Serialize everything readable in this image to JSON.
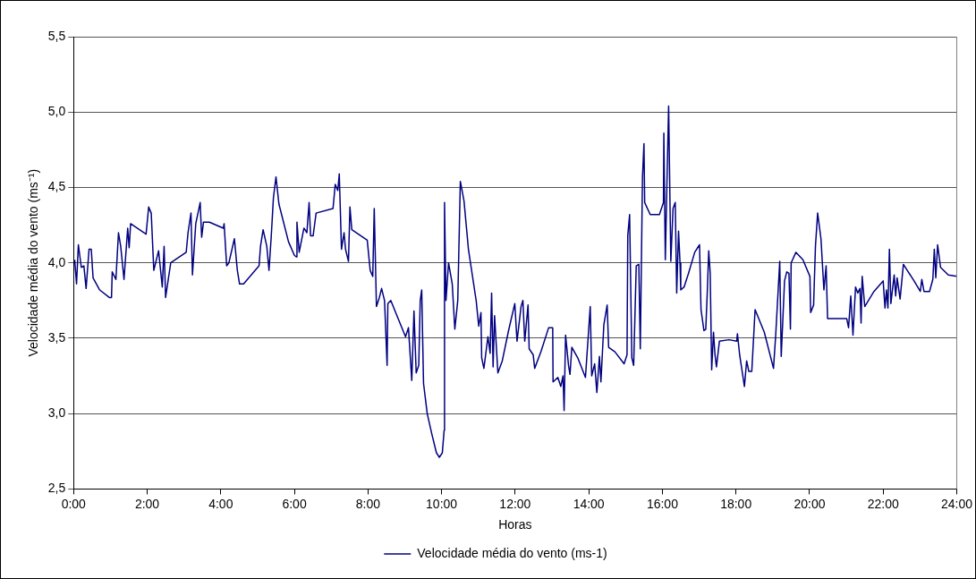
{
  "chart_data": {
    "type": "line",
    "xlabel": "Horas",
    "ylabel": "Velocidade média do vento (ms⁻¹)",
    "grid": "y",
    "legend": "bottom",
    "marker": "none",
    "xlim": [
      0,
      24
    ],
    "xticks": [
      {
        "value": 0,
        "label": "0:00"
      },
      {
        "value": 2,
        "label": "2:00"
      },
      {
        "value": 4,
        "label": "4:00"
      },
      {
        "value": 6,
        "label": "6:00"
      },
      {
        "value": 8,
        "label": "8:00"
      },
      {
        "value": 10,
        "label": "10:00"
      },
      {
        "value": 12,
        "label": "12:00"
      },
      {
        "value": 14,
        "label": "14:00"
      },
      {
        "value": 16,
        "label": "16:00"
      },
      {
        "value": 18,
        "label": "18:00"
      },
      {
        "value": 20,
        "label": "20:00"
      },
      {
        "value": 22,
        "label": "22:00"
      },
      {
        "value": 24,
        "label": "24:00"
      }
    ],
    "ylim": [
      2.5,
      5.5
    ],
    "yticks": [
      {
        "value": 2.5,
        "label": "2,5"
      },
      {
        "value": 3,
        "label": "3,0"
      },
      {
        "value": 3.5,
        "label": "3,5"
      },
      {
        "value": 4,
        "label": "4,0"
      },
      {
        "value": 4.5,
        "label": "4,5"
      },
      {
        "value": 5,
        "label": "5,0"
      },
      {
        "value": 5.5,
        "label": "5,5"
      }
    ],
    "series": [
      {
        "name": "Velocidade média do vento (ms-1)",
        "color": "#000080",
        "x": [
          0.03,
          0.08,
          0.13,
          0.21,
          0.28,
          0.34,
          0.42,
          0.48,
          0.53,
          0.71,
          0.97,
          1.03,
          1.05,
          1.15,
          1.22,
          1.28,
          1.37,
          1.47,
          1.51,
          1.55,
          1.97,
          2.04,
          2.11,
          2.18,
          2.31,
          2.41,
          2.46,
          2.5,
          2.64,
          3.06,
          3.11,
          3.19,
          3.23,
          3.32,
          3.44,
          3.48,
          3.53,
          3.69,
          4.07,
          4.09,
          4.16,
          4.22,
          4.37,
          4.45,
          4.51,
          4.62,
          5.04,
          5.08,
          5.15,
          5.25,
          5.31,
          5.37,
          5.43,
          5.5,
          5.58,
          5.84,
          6.0,
          6.05,
          6.07,
          6.13,
          6.26,
          6.34,
          6.4,
          6.44,
          6.51,
          6.59,
          7.05,
          7.11,
          7.18,
          7.22,
          7.28,
          7.35,
          7.39,
          7.47,
          7.51,
          7.56,
          7.98,
          8.06,
          8.13,
          8.17,
          8.23,
          8.31,
          8.37,
          8.45,
          8.52,
          8.54,
          8.62,
          8.77,
          9.02,
          9.1,
          9.19,
          9.25,
          9.31,
          9.38,
          9.42,
          9.46,
          9.51,
          9.61,
          9.73,
          9.86,
          9.94,
          10.02,
          10.07,
          10.08,
          10.12,
          10.19,
          10.29,
          10.36,
          10.44,
          10.51,
          10.61,
          10.73,
          10.94,
          11.01,
          11.07,
          11.09,
          11.15,
          11.26,
          11.32,
          11.36,
          11.4,
          11.44,
          11.53,
          11.65,
          11.82,
          11.99,
          12.05,
          12.16,
          12.21,
          12.26,
          12.35,
          12.38,
          12.49,
          12.53,
          12.7,
          12.91,
          13.02,
          13.03,
          13.16,
          13.24,
          13.3,
          13.33,
          13.37,
          13.45,
          13.49,
          13.54,
          13.7,
          13.91,
          14.04,
          14.08,
          14.16,
          14.22,
          14.29,
          14.33,
          14.41,
          14.5,
          14.54,
          14.71,
          14.96,
          15.04,
          15.06,
          15.11,
          15.17,
          15.22,
          15.29,
          15.36,
          15.4,
          15.46,
          15.5,
          15.52,
          15.67,
          15.92,
          16.03,
          16.04,
          16.08,
          16.17,
          16.23,
          16.29,
          16.35,
          16.39,
          16.44,
          16.48,
          16.5,
          16.59,
          16.71,
          16.88,
          17.01,
          17.05,
          17.13,
          17.18,
          17.22,
          17.26,
          17.3,
          17.34,
          17.39,
          17.43,
          17.47,
          17.55,
          17.81,
          18.02,
          18.04,
          18.1,
          18.23,
          18.29,
          18.35,
          18.43,
          18.52,
          18.77,
          19.02,
          19.08,
          19.19,
          19.23,
          19.32,
          19.38,
          19.44,
          19.48,
          19.5,
          19.63,
          19.82,
          20.01,
          20.03,
          20.11,
          20.16,
          20.22,
          20.31,
          20.39,
          20.45,
          20.49,
          20.74,
          21.01,
          21.06,
          21.12,
          21.18,
          21.25,
          21.31,
          21.37,
          21.4,
          21.43,
          21.5,
          21.75,
          22.0,
          22.05,
          22.09,
          22.13,
          22.17,
          22.21,
          22.3,
          22.34,
          22.38,
          22.46,
          22.55,
          22.84,
          23.01,
          23.05,
          23.11,
          23.26,
          23.35,
          23.39,
          23.43,
          23.48,
          23.56,
          23.77,
          24.0
        ],
        "values": [
          4.02,
          3.86,
          4.12,
          3.97,
          3.98,
          3.83,
          4.09,
          4.09,
          3.9,
          3.82,
          3.77,
          3.77,
          3.94,
          3.89,
          4.2,
          4.11,
          3.89,
          4.23,
          4.1,
          4.26,
          4.19,
          4.37,
          4.33,
          3.95,
          4.08,
          3.84,
          4.11,
          3.77,
          4.0,
          4.07,
          4.2,
          4.33,
          3.92,
          4.26,
          4.4,
          4.17,
          4.27,
          4.27,
          4.23,
          4.26,
          3.98,
          4.0,
          4.16,
          3.95,
          3.86,
          3.86,
          3.98,
          4.11,
          4.22,
          4.11,
          3.95,
          4.17,
          4.43,
          4.57,
          4.39,
          4.14,
          4.05,
          4.04,
          4.27,
          4.07,
          4.23,
          4.2,
          4.4,
          4.18,
          4.18,
          4.33,
          4.36,
          4.52,
          4.48,
          4.59,
          4.09,
          4.2,
          4.09,
          4.01,
          4.37,
          4.22,
          4.15,
          3.95,
          3.91,
          4.36,
          3.71,
          3.77,
          3.83,
          3.75,
          3.32,
          3.73,
          3.75,
          3.66,
          3.51,
          3.57,
          3.22,
          3.68,
          3.27,
          3.32,
          3.75,
          3.82,
          3.2,
          3.0,
          2.87,
          2.74,
          2.71,
          2.74,
          2.89,
          4.4,
          3.75,
          4.0,
          3.86,
          3.56,
          3.75,
          4.54,
          4.41,
          4.09,
          3.75,
          3.58,
          3.67,
          3.37,
          3.3,
          3.51,
          3.4,
          3.8,
          3.31,
          3.65,
          3.27,
          3.35,
          3.55,
          3.73,
          3.48,
          3.71,
          3.75,
          3.48,
          3.72,
          3.43,
          3.39,
          3.3,
          3.41,
          3.57,
          3.57,
          3.21,
          3.24,
          3.18,
          3.25,
          3.02,
          3.52,
          3.32,
          3.26,
          3.44,
          3.37,
          3.24,
          3.71,
          3.25,
          3.33,
          3.14,
          3.38,
          3.21,
          3.59,
          3.72,
          3.44,
          3.41,
          3.33,
          3.39,
          4.18,
          4.32,
          3.37,
          3.32,
          3.98,
          3.99,
          3.43,
          4.57,
          4.79,
          4.4,
          4.32,
          4.32,
          4.4,
          4.86,
          4.02,
          5.04,
          4.01,
          4.36,
          4.4,
          3.8,
          4.21,
          4.0,
          3.82,
          3.84,
          3.93,
          4.07,
          4.12,
          3.69,
          3.55,
          3.56,
          3.8,
          4.08,
          3.93,
          3.29,
          3.54,
          3.39,
          3.31,
          3.48,
          3.49,
          3.48,
          3.53,
          3.39,
          3.18,
          3.35,
          3.28,
          3.28,
          3.69,
          3.54,
          3.3,
          3.52,
          4.01,
          3.38,
          3.88,
          3.94,
          3.93,
          3.56,
          4.0,
          4.07,
          4.02,
          3.91,
          3.67,
          3.72,
          4.11,
          4.33,
          4.16,
          3.82,
          3.98,
          3.63,
          3.63,
          3.63,
          3.57,
          3.78,
          3.52,
          3.84,
          3.8,
          3.83,
          3.6,
          3.91,
          3.71,
          3.81,
          3.88,
          3.7,
          3.82,
          3.7,
          4.09,
          3.73,
          3.92,
          3.78,
          3.9,
          3.76,
          3.99,
          3.88,
          3.81,
          3.89,
          3.81,
          3.81,
          3.89,
          4.09,
          3.9,
          4.12,
          3.97,
          3.92,
          3.91
        ]
      }
    ]
  }
}
